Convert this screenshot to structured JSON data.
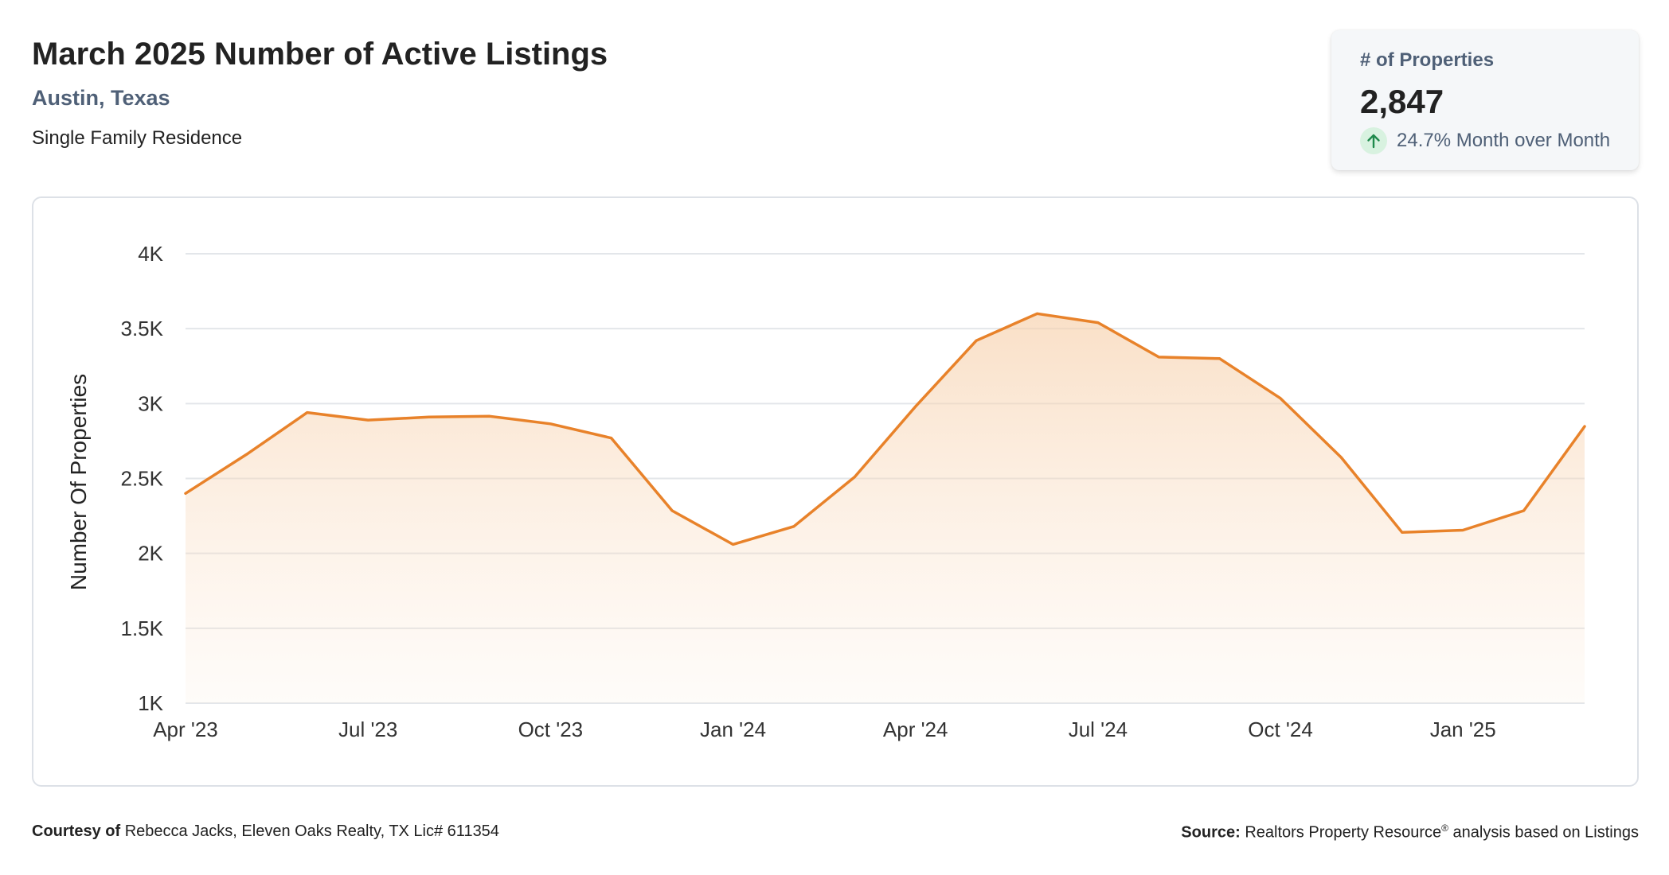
{
  "header": {
    "title": "March 2025 Number of Active Listings",
    "location": "Austin, Texas",
    "property_type": "Single Family Residence"
  },
  "stat_card": {
    "label": "# of Properties",
    "value": "2,847",
    "change": "24.7% Month over Month",
    "change_direction": "up",
    "arrow_icon": "arrow-up-icon"
  },
  "colors": {
    "line": "#e8822a",
    "fill": "#f8d9bd",
    "grid": "#e3e6ea",
    "up_green": "#1f8a4c"
  },
  "chart_data": {
    "type": "area",
    "ylabel": "Number Of Properties",
    "xlabel": "",
    "ylim": [
      1000,
      4000
    ],
    "yticks": [
      1000,
      1500,
      2000,
      2500,
      3000,
      3500,
      4000
    ],
    "ytick_labels": [
      "1K",
      "1.5K",
      "2K",
      "2.5K",
      "3K",
      "3.5K",
      "4K"
    ],
    "x": [
      "Apr '23",
      "May '23",
      "Jun '23",
      "Jul '23",
      "Aug '23",
      "Sep '23",
      "Oct '23",
      "Nov '23",
      "Dec '23",
      "Jan '24",
      "Feb '24",
      "Mar '24",
      "Apr '24",
      "May '24",
      "Jun '24",
      "Jul '24",
      "Aug '24",
      "Sep '24",
      "Oct '24",
      "Nov '24",
      "Dec '24",
      "Jan '25",
      "Feb '25",
      "Mar '25"
    ],
    "xtick_labels": [
      "Apr '23",
      "",
      "",
      "Jul '23",
      "",
      "",
      "Oct '23",
      "",
      "",
      "Jan '24",
      "",
      "",
      "Apr '24",
      "",
      "",
      "Jul '24",
      "",
      "",
      "Oct '24",
      "",
      "",
      "Jan '25",
      "",
      ""
    ],
    "values": [
      2400,
      2660,
      2940,
      2890,
      2910,
      2915,
      2865,
      2770,
      2285,
      2060,
      2180,
      2510,
      2980,
      3420,
      3600,
      3540,
      3310,
      3300,
      3035,
      2640,
      2140,
      2155,
      2285,
      2847
    ],
    "grid": true,
    "legend": "none"
  },
  "footer": {
    "courtesy_label": "Courtesy of",
    "courtesy_text": "Rebecca Jacks, Eleven Oaks Realty, TX Lic# 611354",
    "source_label": "Source:",
    "source_text_1": "Realtors Property Resource",
    "source_reg": "®",
    "source_text_2": " analysis based on Listings"
  }
}
